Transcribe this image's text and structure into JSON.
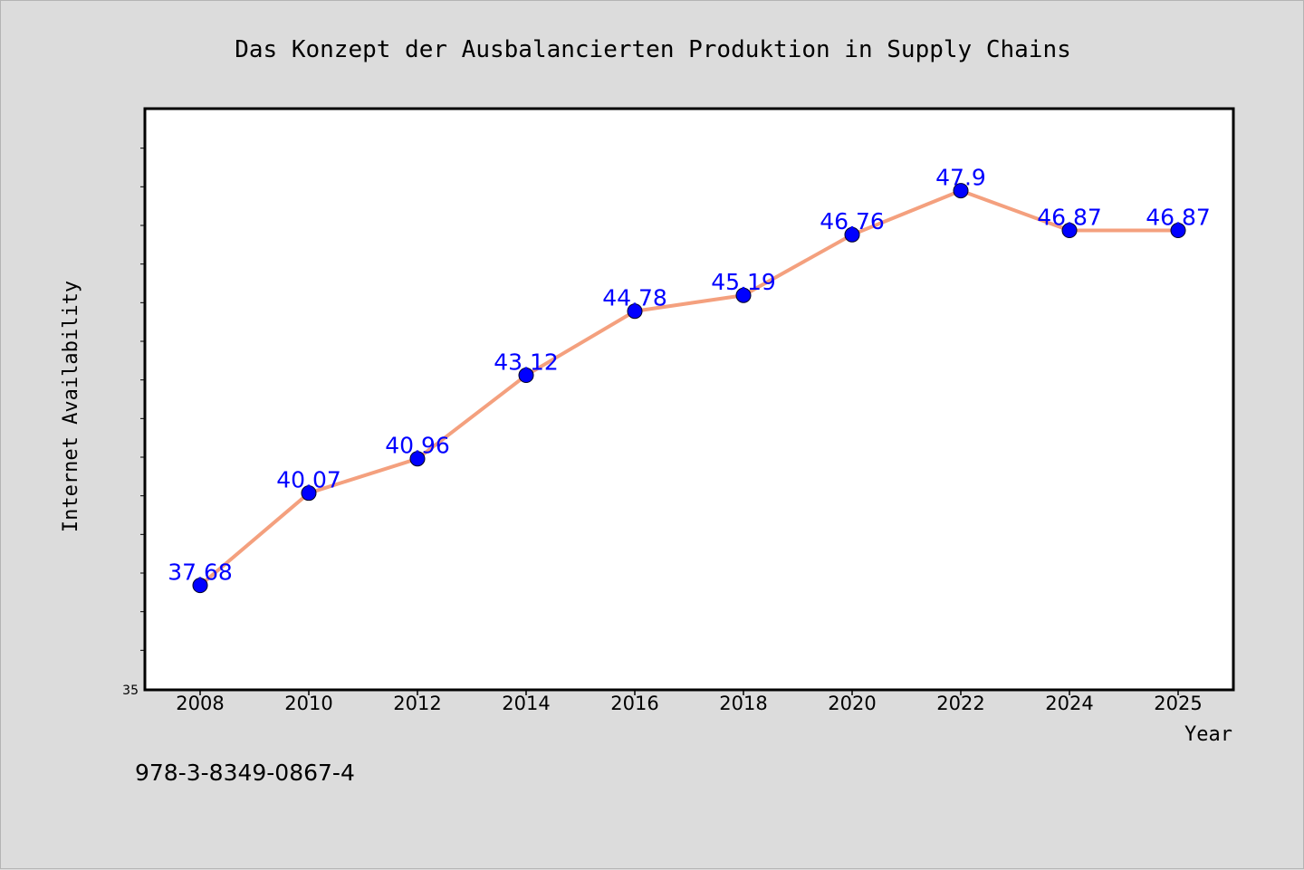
{
  "chart_data": {
    "type": "line",
    "title": "Das Konzept der Ausbalancierten Produktion in Supply Chains",
    "xlabel": "Year",
    "ylabel": "Internet Availability",
    "categories": [
      "2008",
      "2010",
      "2012",
      "2014",
      "2016",
      "2018",
      "2020",
      "2022",
      "2024",
      "2025"
    ],
    "series": [
      {
        "values": [
          37.68,
          40.07,
          40.96,
          43.12,
          44.78,
          45.19,
          46.76,
          47.9,
          46.87,
          46.87
        ],
        "labels": [
          "37.68",
          "40.07",
          "40.96",
          "43.12",
          "44.78",
          "45.19",
          "46.76",
          "47.9",
          "46.87",
          "46.87"
        ]
      }
    ],
    "ylim": [
      35,
      50
    ],
    "y_tick_labels": [
      "35"
    ],
    "grid": false,
    "line_color": "#f4a07e",
    "marker_color": "#0000ff",
    "label_color": "#0000ff"
  },
  "footer": {
    "isbn": "978-3-8349-0867-4"
  },
  "colors": {
    "background": "#dcdcdc",
    "plot_background": "#ffffff"
  }
}
